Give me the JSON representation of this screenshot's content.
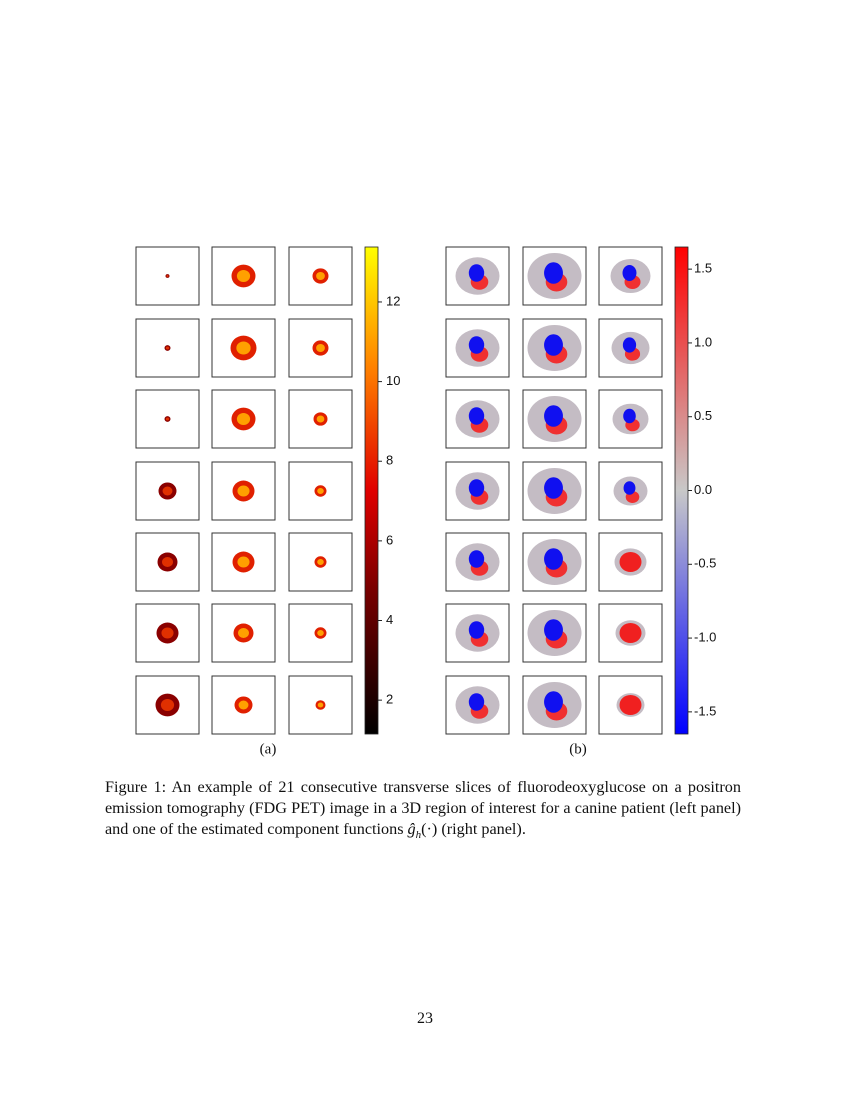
{
  "figure": {
    "panels": [
      {
        "label": "(a)",
        "colorbar": {
          "lim": [
            1.15,
            13.38
          ],
          "ticks": [
            2,
            4,
            6,
            8,
            10,
            12
          ]
        }
      },
      {
        "label": "(b)",
        "colorbar": {
          "lim": [
            -1.65,
            1.65
          ],
          "ticks": [
            1.5,
            {
              "value": 1,
              "label": "1.0"
            },
            0.5,
            {
              "value": 0,
              "label": "0.0"
            },
            -0.5,
            {
              "value": -1,
              "label": "-1.0"
            },
            -1.5
          ]
        }
      }
    ],
    "caption": {
      "text_before": "Figure 1: An example of 21 consecutive transverse slices of fluorodeoxyglucose on a positron emission tomography (FDG PET) image in a 3D region of interest for a canine patient (left panel) and one of the estimated component functions ",
      "math": "ĝ",
      "math_sub": "h",
      "math_arg": "(·)",
      "text_after": " (right panel)."
    }
  },
  "page_number": "23"
}
